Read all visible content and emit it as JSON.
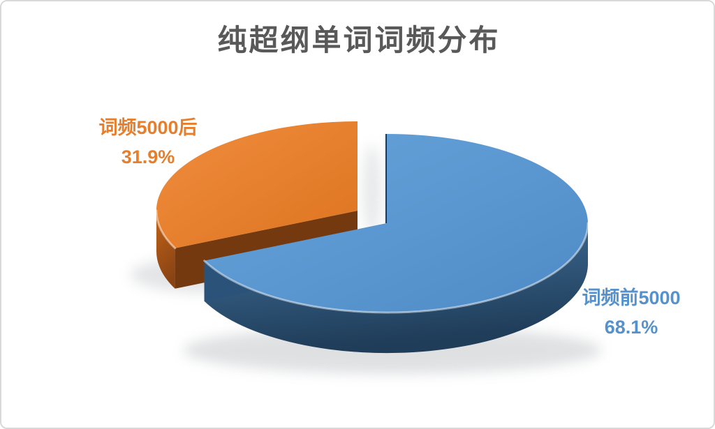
{
  "frame": {
    "background": "#ffffff",
    "border_color": "#d9d9d9"
  },
  "chart_data": {
    "type": "pie",
    "style": "3d-exploded",
    "title": "纯超纲单词词频分布",
    "title_color": "#595959",
    "legend_position": "none",
    "data_labels": "category name + percentage, outside",
    "rotation_start_deg": 0,
    "categories": [
      "词频前5000",
      "词频5000后"
    ],
    "values": [
      68.1,
      31.9
    ],
    "slices": [
      {
        "label": "词频前5000",
        "value": 68.1,
        "pct_label": "68.1%",
        "label_color": "#5592cd",
        "colors": {
          "top_light": "#68a4db",
          "top_dark": "#4e8ac5",
          "side_light": "#41719c",
          "side_dark": "#1f3c58",
          "cut": "#2b5278",
          "edge_sliver": "#1e3a55"
        }
      },
      {
        "label": "词频5000后",
        "value": 31.9,
        "pct_label": "31.9%",
        "label_color": "#e67e2b",
        "colors": {
          "top_light": "#f08d3e",
          "top_dark": "#dd7420",
          "side_light": "#c26418",
          "side_dark": "#8a4414",
          "cut": "#74390f",
          "edge_sliver": "#74390f"
        }
      }
    ]
  }
}
